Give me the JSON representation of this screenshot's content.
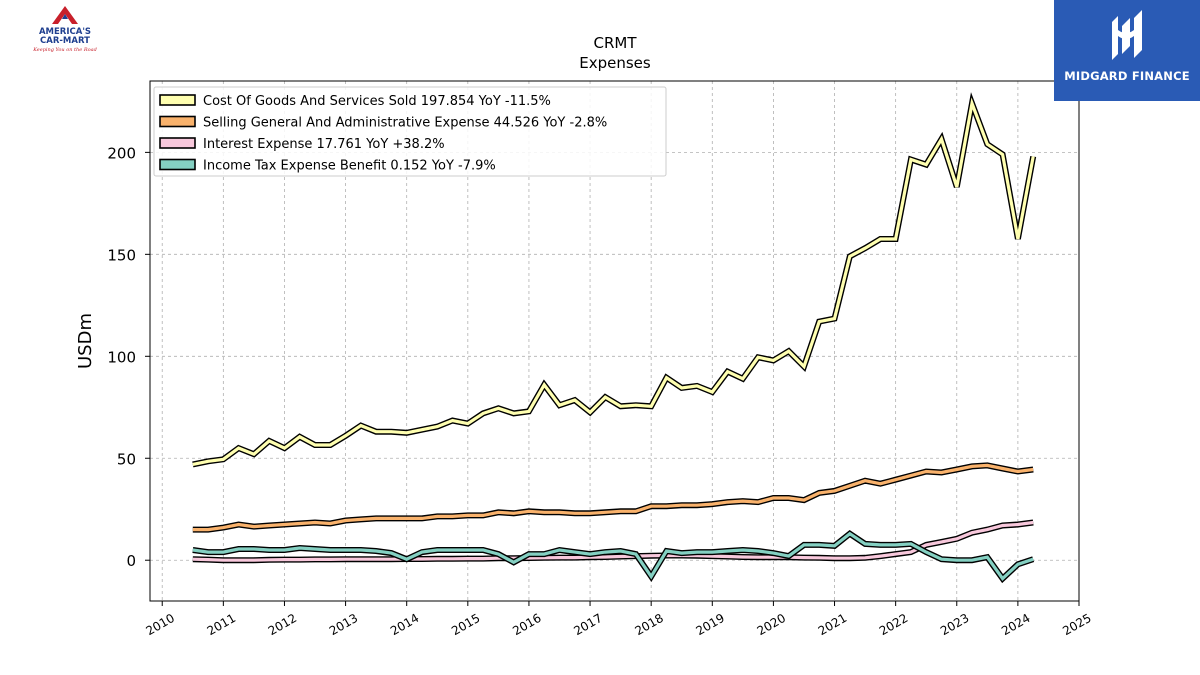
{
  "brand_left": {
    "name_line1": "AMERICA'S",
    "name_line2": "CAR-MART",
    "tagline": "Keeping You on the Road"
  },
  "brand_right": {
    "name": "MIDGARD FINANCE"
  },
  "chart_data": {
    "type": "line",
    "title": "CRMT",
    "subtitle": "Expenses",
    "xlabel": "",
    "ylabel": "USDm",
    "xlim": [
      2009.8,
      2025.0
    ],
    "ylim": [
      -20,
      235
    ],
    "xticks": [
      2010,
      2011,
      2012,
      2013,
      2014,
      2015,
      2016,
      2017,
      2018,
      2019,
      2020,
      2021,
      2022,
      2023,
      2024,
      2025
    ],
    "yticks": [
      0,
      50,
      100,
      150,
      200
    ],
    "grid": true,
    "legend_position": "upper-left",
    "colors": {
      "cogs": "#ffffb0",
      "sga": "#f9b26c",
      "interest": "#f8c8dc",
      "tax": "#84d0c2",
      "outline": "#000000",
      "grid": "#b0b0b0"
    },
    "series": [
      {
        "name": "Cost Of Goods And Services Sold  197.854 YoY -11.5%",
        "color": "#ffffb0",
        "points": [
          [
            2010.5,
            47
          ],
          [
            2010.75,
            48.5
          ],
          [
            2011.0,
            49.5
          ],
          [
            2011.25,
            55
          ],
          [
            2011.5,
            52
          ],
          [
            2011.75,
            58.5
          ],
          [
            2012.0,
            55
          ],
          [
            2012.25,
            60.5
          ],
          [
            2012.5,
            56.5
          ],
          [
            2012.75,
            56.5
          ],
          [
            2013.0,
            61
          ],
          [
            2013.25,
            66
          ],
          [
            2013.5,
            63
          ],
          [
            2013.75,
            63
          ],
          [
            2014.0,
            62.5
          ],
          [
            2014.25,
            64
          ],
          [
            2014.5,
            65.5
          ],
          [
            2014.75,
            68.5
          ],
          [
            2015.0,
            67
          ],
          [
            2015.25,
            72
          ],
          [
            2015.5,
            74.5
          ],
          [
            2015.75,
            72
          ],
          [
            2016.0,
            73
          ],
          [
            2016.25,
            86
          ],
          [
            2016.5,
            76
          ],
          [
            2016.75,
            78.5
          ],
          [
            2017.0,
            72.5
          ],
          [
            2017.25,
            80
          ],
          [
            2017.5,
            75.5
          ],
          [
            2017.75,
            76
          ],
          [
            2018.0,
            75.5
          ],
          [
            2018.25,
            89.5
          ],
          [
            2018.5,
            84.5
          ],
          [
            2018.75,
            85.5
          ],
          [
            2019.0,
            82.5
          ],
          [
            2019.25,
            92.5
          ],
          [
            2019.5,
            89
          ],
          [
            2019.75,
            99.5
          ],
          [
            2020.0,
            98
          ],
          [
            2020.25,
            102.5
          ],
          [
            2020.5,
            95
          ],
          [
            2020.75,
            117
          ],
          [
            2021.0,
            118.5
          ],
          [
            2021.25,
            149
          ],
          [
            2021.5,
            153
          ],
          [
            2021.75,
            157.5
          ],
          [
            2022.0,
            157.5
          ],
          [
            2022.25,
            196.5
          ],
          [
            2022.5,
            194
          ],
          [
            2022.75,
            206.5
          ],
          [
            2023.0,
            183
          ],
          [
            2023.25,
            224
          ],
          [
            2023.5,
            204
          ],
          [
            2023.75,
            199
          ],
          [
            2024.0,
            157.5
          ],
          [
            2024.25,
            198
          ]
        ]
      },
      {
        "name": "Selling General And Administrative Expense  44.526 YoY -2.8%",
        "color": "#f9b26c",
        "points": [
          [
            2010.5,
            15
          ],
          [
            2010.75,
            15
          ],
          [
            2011.0,
            16
          ],
          [
            2011.25,
            17.5
          ],
          [
            2011.5,
            16.5
          ],
          [
            2011.75,
            17
          ],
          [
            2012.0,
            17.5
          ],
          [
            2012.25,
            18
          ],
          [
            2012.5,
            18.5
          ],
          [
            2012.75,
            18
          ],
          [
            2013.0,
            19.5
          ],
          [
            2013.25,
            20
          ],
          [
            2013.5,
            20.5
          ],
          [
            2013.75,
            20.5
          ],
          [
            2014.0,
            20.5
          ],
          [
            2014.25,
            20.5
          ],
          [
            2014.5,
            21.5
          ],
          [
            2014.75,
            21.5
          ],
          [
            2015.0,
            22
          ],
          [
            2015.25,
            22
          ],
          [
            2015.5,
            23.5
          ],
          [
            2015.75,
            23
          ],
          [
            2016.0,
            24
          ],
          [
            2016.25,
            23.5
          ],
          [
            2016.5,
            23.5
          ],
          [
            2016.75,
            23
          ],
          [
            2017.0,
            23
          ],
          [
            2017.25,
            23.5
          ],
          [
            2017.5,
            24
          ],
          [
            2017.75,
            24
          ],
          [
            2018.0,
            26.5
          ],
          [
            2018.25,
            26.5
          ],
          [
            2018.5,
            27
          ],
          [
            2018.75,
            27
          ],
          [
            2019.0,
            27.5
          ],
          [
            2019.25,
            28.5
          ],
          [
            2019.5,
            29
          ],
          [
            2019.75,
            28.5
          ],
          [
            2020.0,
            30.5
          ],
          [
            2020.25,
            30.5
          ],
          [
            2020.5,
            29.5
          ],
          [
            2020.75,
            33
          ],
          [
            2021.0,
            34
          ],
          [
            2021.25,
            36.5
          ],
          [
            2021.5,
            39
          ],
          [
            2021.75,
            37.5
          ],
          [
            2022.0,
            39.5
          ],
          [
            2022.25,
            41.5
          ],
          [
            2022.5,
            43.5
          ],
          [
            2022.75,
            43
          ],
          [
            2023.0,
            44.5
          ],
          [
            2023.25,
            46
          ],
          [
            2023.5,
            46.5
          ],
          [
            2023.75,
            45
          ],
          [
            2024.0,
            43.5
          ],
          [
            2024.25,
            44.5
          ]
        ]
      },
      {
        "name": "Interest Expense  17.761 YoY +38.2%",
        "color": "#f8c8dc",
        "points": [
          [
            2010.5,
            0.5
          ],
          [
            2010.75,
            0.3
          ],
          [
            2011.0,
            0
          ],
          [
            2011.25,
            0
          ],
          [
            2011.5,
            0
          ],
          [
            2011.75,
            0.2
          ],
          [
            2012.0,
            0.3
          ],
          [
            2012.25,
            0.3
          ],
          [
            2012.5,
            0.4
          ],
          [
            2012.75,
            0.4
          ],
          [
            2013.0,
            0.5
          ],
          [
            2013.25,
            0.5
          ],
          [
            2013.5,
            0.5
          ],
          [
            2013.75,
            0.5
          ],
          [
            2014.0,
            0.6
          ],
          [
            2014.25,
            0.6
          ],
          [
            2014.5,
            0.7
          ],
          [
            2014.75,
            0.7
          ],
          [
            2015.0,
            0.8
          ],
          [
            2015.25,
            0.8
          ],
          [
            2015.5,
            1
          ],
          [
            2015.75,
            1
          ],
          [
            2016.0,
            1.1
          ],
          [
            2016.25,
            1.2
          ],
          [
            2016.5,
            1.3
          ],
          [
            2016.75,
            1.3
          ],
          [
            2017.0,
            1.5
          ],
          [
            2017.25,
            1.6
          ],
          [
            2017.5,
            1.8
          ],
          [
            2017.75,
            2
          ],
          [
            2018.0,
            2.2
          ],
          [
            2018.25,
            2.3
          ],
          [
            2018.5,
            2.3
          ],
          [
            2018.75,
            2.2
          ],
          [
            2019.0,
            2
          ],
          [
            2019.25,
            1.8
          ],
          [
            2019.5,
            1.6
          ],
          [
            2019.75,
            1.5
          ],
          [
            2020.0,
            1.5
          ],
          [
            2020.25,
            1.5
          ],
          [
            2020.5,
            1.3
          ],
          [
            2020.75,
            1.2
          ],
          [
            2021.0,
            1
          ],
          [
            2021.25,
            1
          ],
          [
            2021.5,
            1.2
          ],
          [
            2021.75,
            2
          ],
          [
            2022.0,
            3
          ],
          [
            2022.25,
            4
          ],
          [
            2022.5,
            7.5
          ],
          [
            2022.75,
            9
          ],
          [
            2023.0,
            10.5
          ],
          [
            2023.25,
            13.5
          ],
          [
            2023.5,
            15
          ],
          [
            2023.75,
            17
          ],
          [
            2024.0,
            17.5
          ],
          [
            2024.25,
            18.5
          ]
        ]
      },
      {
        "name": "Income Tax Expense Benefit  0.152 YoY -7.9%",
        "color": "#84d0c2",
        "points": [
          [
            2010.5,
            5
          ],
          [
            2010.75,
            4
          ],
          [
            2011.0,
            4
          ],
          [
            2011.25,
            5.5
          ],
          [
            2011.5,
            5.5
          ],
          [
            2011.75,
            5
          ],
          [
            2012.0,
            5
          ],
          [
            2012.25,
            6
          ],
          [
            2012.5,
            5.5
          ],
          [
            2012.75,
            5
          ],
          [
            2013.0,
            5
          ],
          [
            2013.25,
            5
          ],
          [
            2013.5,
            4.5
          ],
          [
            2013.75,
            3.5
          ],
          [
            2014.0,
            0.5
          ],
          [
            2014.25,
            4
          ],
          [
            2014.5,
            5
          ],
          [
            2014.75,
            5
          ],
          [
            2015.0,
            5
          ],
          [
            2015.25,
            5
          ],
          [
            2015.5,
            3
          ],
          [
            2015.75,
            -1
          ],
          [
            2016.0,
            3
          ],
          [
            2016.25,
            3
          ],
          [
            2016.5,
            5
          ],
          [
            2016.75,
            4
          ],
          [
            2017.0,
            3
          ],
          [
            2017.25,
            4
          ],
          [
            2017.5,
            4.5
          ],
          [
            2017.75,
            3
          ],
          [
            2018.0,
            -8
          ],
          [
            2018.25,
            4.5
          ],
          [
            2018.5,
            3.5
          ],
          [
            2018.75,
            4
          ],
          [
            2019.0,
            4
          ],
          [
            2019.25,
            4.5
          ],
          [
            2019.5,
            5
          ],
          [
            2019.75,
            4.5
          ],
          [
            2020.0,
            3.5
          ],
          [
            2020.25,
            2
          ],
          [
            2020.5,
            7.5
          ],
          [
            2020.75,
            7.5
          ],
          [
            2021.0,
            7
          ],
          [
            2021.25,
            13
          ],
          [
            2021.5,
            8
          ],
          [
            2021.75,
            7.5
          ],
          [
            2022.0,
            7.5
          ],
          [
            2022.25,
            8
          ],
          [
            2022.5,
            4
          ],
          [
            2022.75,
            0.5
          ],
          [
            2023.0,
            0
          ],
          [
            2023.25,
            0
          ],
          [
            2023.5,
            1.5
          ],
          [
            2023.75,
            -9
          ],
          [
            2024.0,
            -2
          ],
          [
            2024.25,
            0.5
          ]
        ]
      }
    ]
  }
}
